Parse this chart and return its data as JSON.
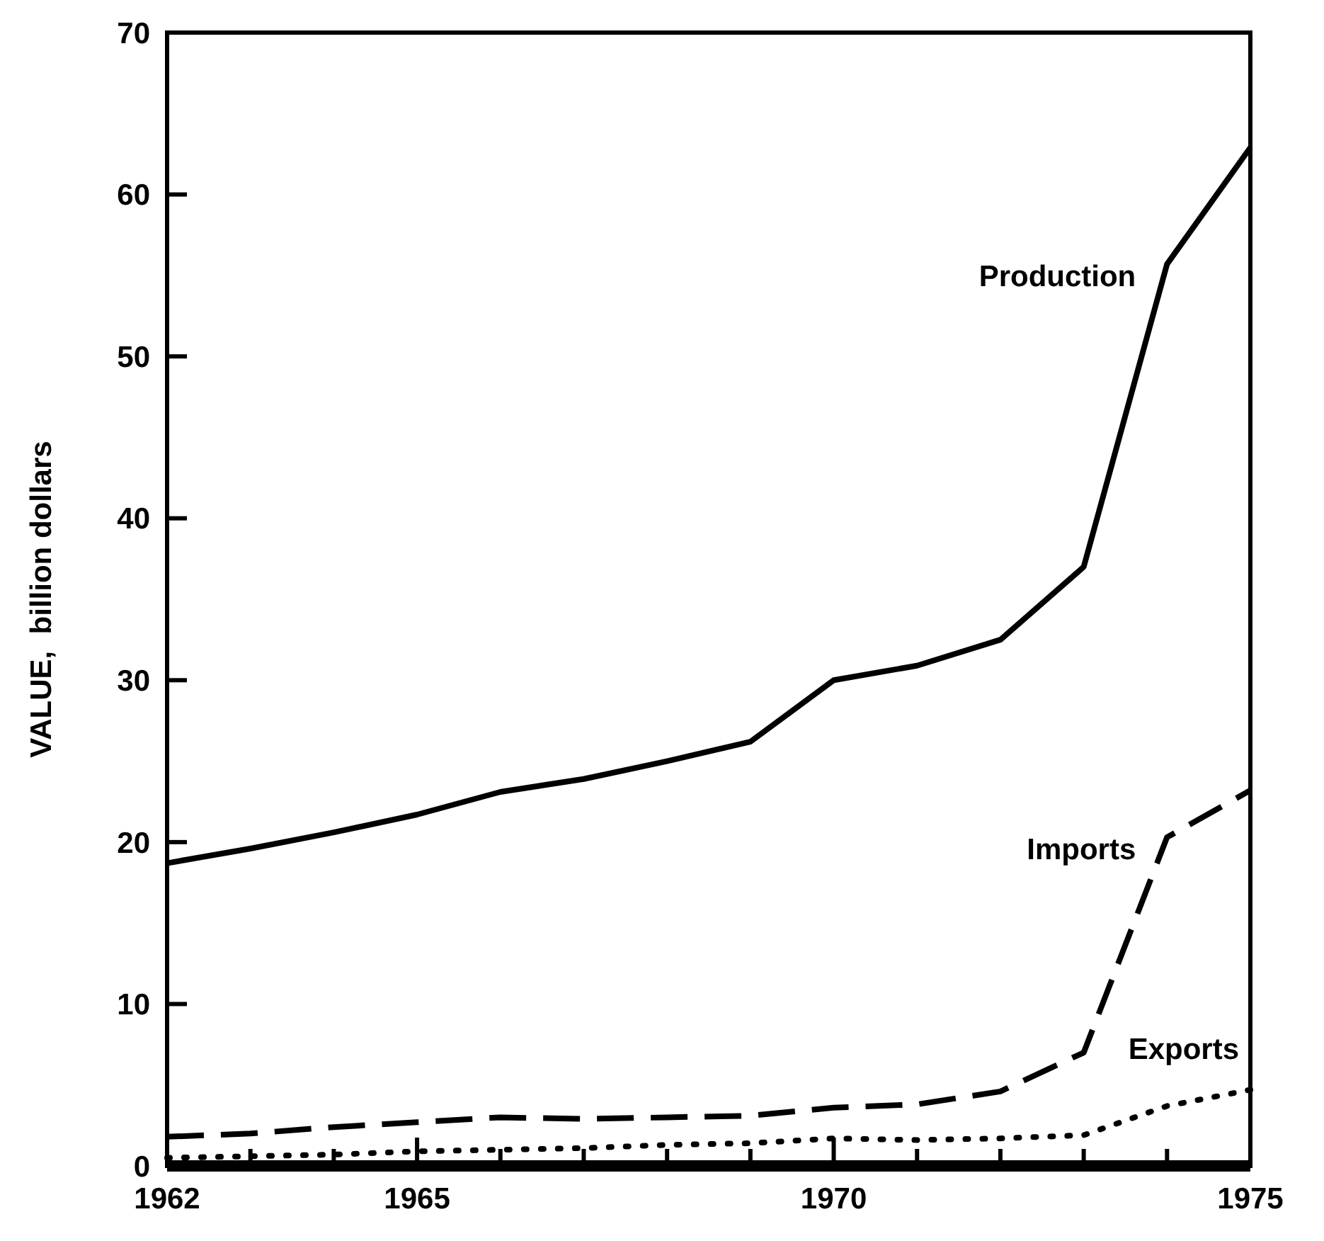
{
  "chart_data": {
    "type": "line",
    "ylabel": "VALUE,  billion dollars",
    "x": [
      1962,
      1963,
      1964,
      1965,
      1966,
      1967,
      1968,
      1969,
      1970,
      1971,
      1972,
      1973,
      1974,
      1975
    ],
    "series": [
      {
        "name": "Production",
        "color": "#000000",
        "line_style": "solid",
        "values": [
          18.7,
          19.6,
          20.6,
          21.7,
          23.1,
          23.9,
          25.0,
          26.2,
          30.0,
          30.9,
          32.5,
          37.0,
          55.7,
          62.9
        ]
      },
      {
        "name": "Imports",
        "color": "#000000",
        "line_style": "dashed",
        "values": [
          1.8,
          2.0,
          2.4,
          2.7,
          3.0,
          2.9,
          3.0,
          3.1,
          3.6,
          3.8,
          4.6,
          7.0,
          20.3,
          23.2
        ]
      },
      {
        "name": "Exports",
        "color": "#000000",
        "line_style": "dotted",
        "values": [
          0.5,
          0.6,
          0.7,
          0.9,
          1.0,
          1.1,
          1.3,
          1.4,
          1.7,
          1.6,
          1.7,
          1.9,
          3.7,
          4.7
        ]
      }
    ],
    "xlim": [
      1962,
      1975
    ],
    "ylim": [
      0,
      70
    ],
    "xticks": [
      1962,
      {
        "value": 1963,
        "label": null
      },
      {
        "value": 1964,
        "label": null
      },
      1965,
      {
        "value": 1966,
        "label": null
      },
      {
        "value": 1967,
        "label": null
      },
      {
        "value": 1968,
        "label": null
      },
      {
        "value": 1969,
        "label": null
      },
      1970,
      {
        "value": 1971,
        "label": null
      },
      {
        "value": 1972,
        "label": null
      },
      {
        "value": 1973,
        "label": null
      },
      {
        "value": 1974,
        "label": null
      },
      1975
    ],
    "yticks": [
      0,
      10,
      20,
      30,
      40,
      50,
      60,
      70
    ],
    "grid": false,
    "marker": "none"
  }
}
